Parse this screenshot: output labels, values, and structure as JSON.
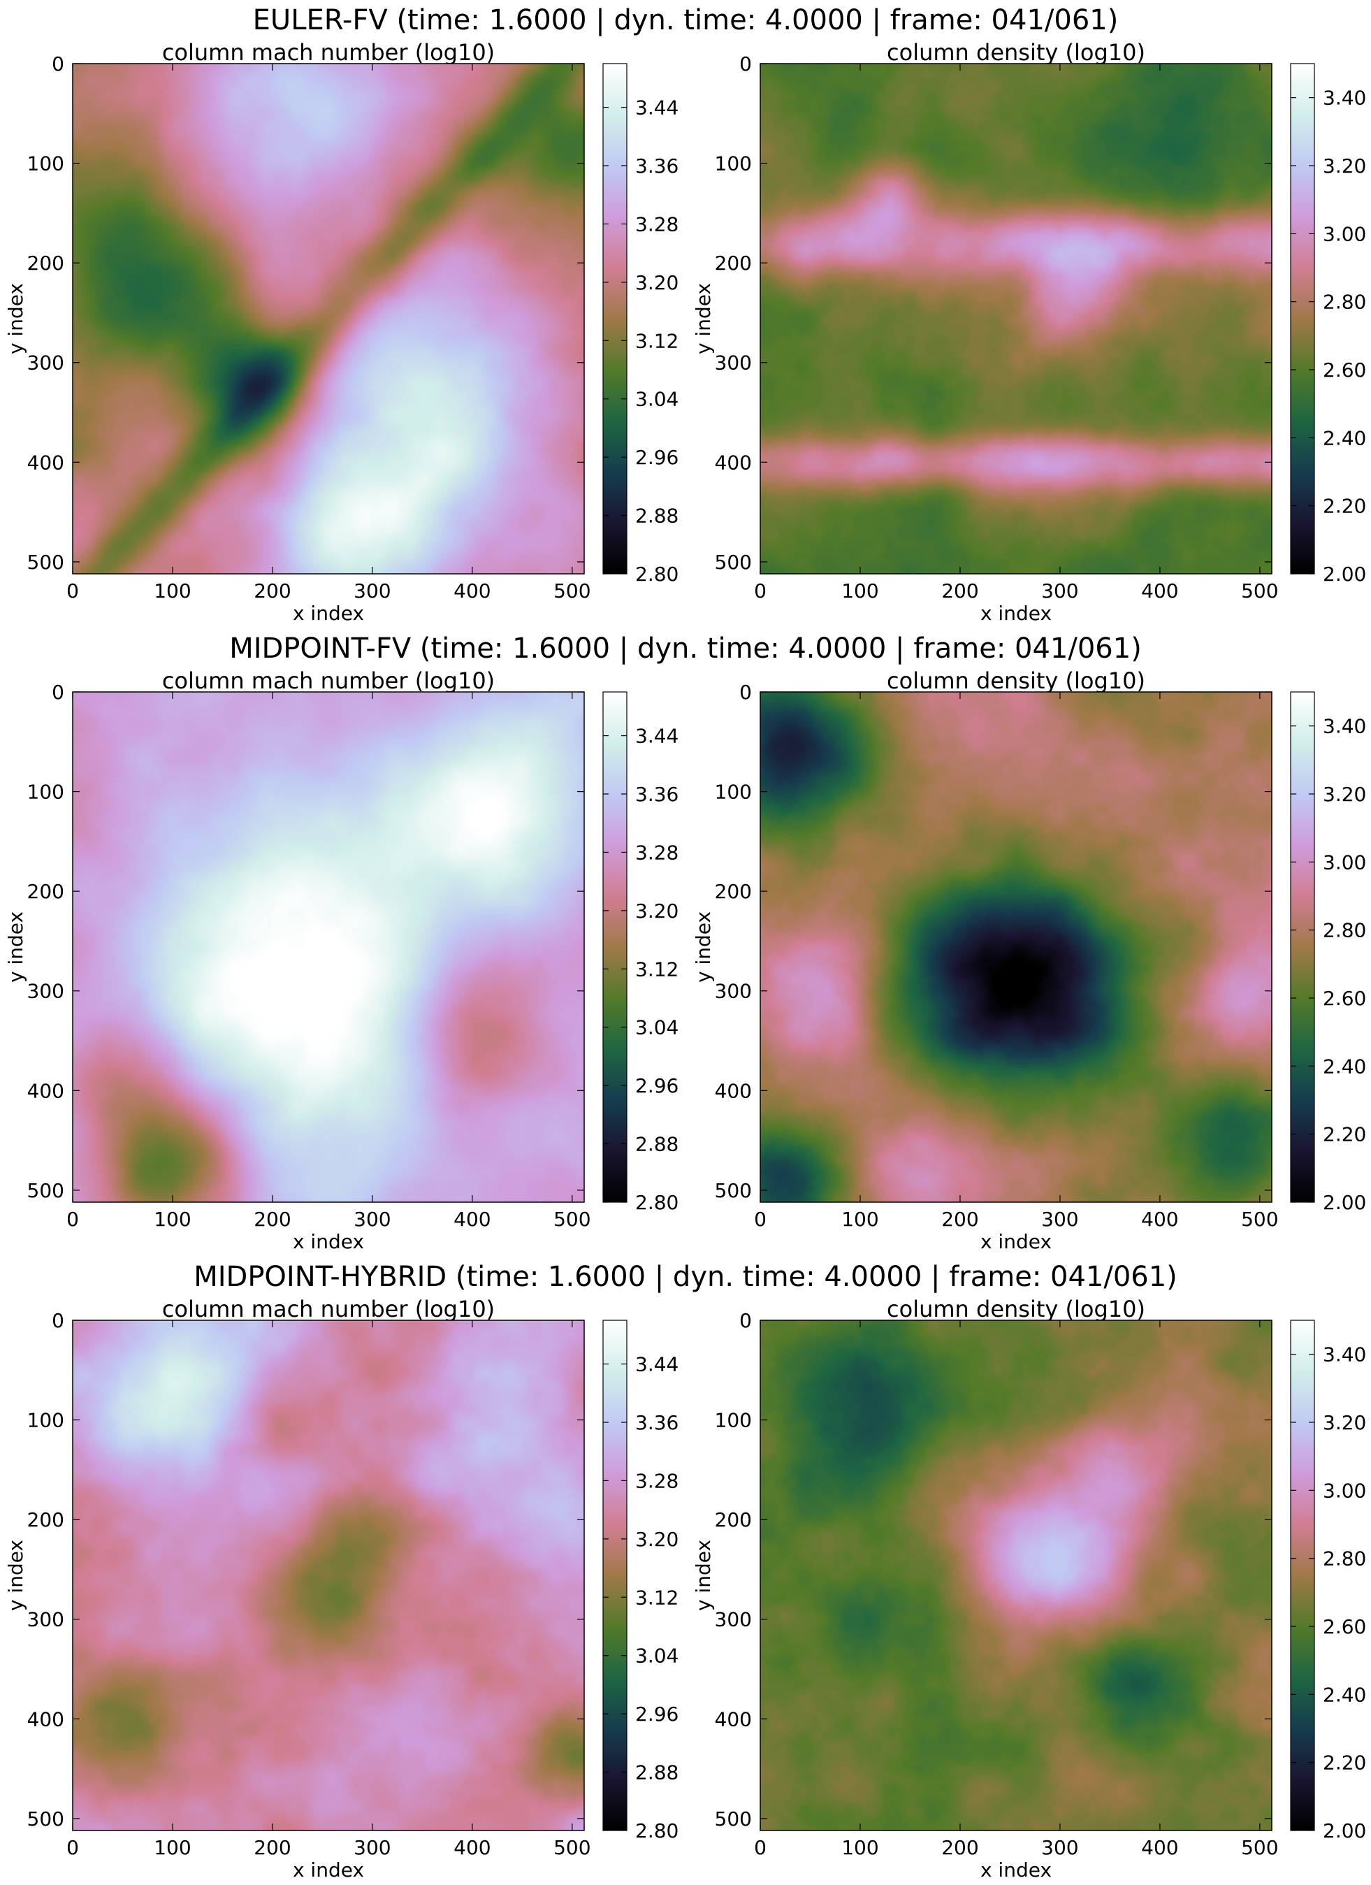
{
  "colormap": {
    "name": "cubehelix",
    "stops": [
      "#000000",
      "#1a1530",
      "#163d4e",
      "#1f6642",
      "#547a2a",
      "#a07949",
      "#d07e93",
      "#cf9cda",
      "#c1caf3",
      "#d2eeea",
      "#ffffff"
    ]
  },
  "rows": [
    {
      "title": "EULER-FV (time:  1.6000 | dyn. time:  4.0000 | frame: 041/061)",
      "panels": [
        {
          "title": "column mach number (log10)",
          "xlabel": "x index",
          "ylabel": "y index",
          "field": "mach-euler",
          "x_ticks": [
            "0",
            "100",
            "200",
            "300",
            "400",
            "500"
          ],
          "y_ticks": [
            "0",
            "100",
            "200",
            "300",
            "400",
            "500"
          ],
          "colorbar_ticks": [
            "2.80",
            "2.88",
            "2.96",
            "3.04",
            "3.12",
            "3.20",
            "3.28",
            "3.36",
            "3.44"
          ]
        },
        {
          "title": "column density (log10)",
          "xlabel": "x index",
          "ylabel": "y index",
          "field": "density-euler",
          "x_ticks": [
            "0",
            "100",
            "200",
            "300",
            "400",
            "500"
          ],
          "y_ticks": [
            "0",
            "100",
            "200",
            "300",
            "400",
            "500"
          ],
          "colorbar_ticks": [
            "2.00",
            "2.20",
            "2.40",
            "2.60",
            "2.80",
            "3.00",
            "3.20",
            "3.40"
          ]
        }
      ]
    },
    {
      "title": "MIDPOINT-FV (time:  1.6000 | dyn. time:  4.0000 | frame: 041/061)",
      "panels": [
        {
          "title": "column mach number (log10)",
          "xlabel": "x index",
          "ylabel": "y index",
          "field": "mach-midpoint-fv",
          "x_ticks": [
            "0",
            "100",
            "200",
            "300",
            "400",
            "500"
          ],
          "y_ticks": [
            "0",
            "100",
            "200",
            "300",
            "400",
            "500"
          ],
          "colorbar_ticks": [
            "2.80",
            "2.88",
            "2.96",
            "3.04",
            "3.12",
            "3.20",
            "3.28",
            "3.36",
            "3.44"
          ]
        },
        {
          "title": "column density (log10)",
          "xlabel": "x index",
          "ylabel": "y index",
          "field": "density-midpoint-fv",
          "x_ticks": [
            "0",
            "100",
            "200",
            "300",
            "400",
            "500"
          ],
          "y_ticks": [
            "0",
            "100",
            "200",
            "300",
            "400",
            "500"
          ],
          "colorbar_ticks": [
            "2.00",
            "2.20",
            "2.40",
            "2.60",
            "2.80",
            "3.00",
            "3.20",
            "3.40"
          ]
        }
      ]
    },
    {
      "title": "MIDPOINT-HYBRID (time:  1.6000 | dyn. time:  4.0000 | frame: 041/061)",
      "panels": [
        {
          "title": "column mach number (log10)",
          "xlabel": "x index",
          "ylabel": "y index",
          "field": "mach-midpoint-hybrid",
          "x_ticks": [
            "0",
            "100",
            "200",
            "300",
            "400",
            "500"
          ],
          "y_ticks": [
            "0",
            "100",
            "200",
            "300",
            "400",
            "500"
          ],
          "colorbar_ticks": [
            "2.80",
            "2.88",
            "2.96",
            "3.04",
            "3.12",
            "3.20",
            "3.28",
            "3.36",
            "3.44"
          ]
        },
        {
          "title": "column density (log10)",
          "xlabel": "x index",
          "ylabel": "y index",
          "field": "density-midpoint-hybrid",
          "x_ticks": [
            "0",
            "100",
            "200",
            "300",
            "400",
            "500"
          ],
          "y_ticks": [
            "0",
            "100",
            "200",
            "300",
            "400",
            "500"
          ],
          "colorbar_ticks": [
            "2.00",
            "2.20",
            "2.40",
            "2.60",
            "2.80",
            "3.00",
            "3.20",
            "3.40"
          ]
        }
      ]
    }
  ],
  "chart_data": [
    {
      "type": "heatmap",
      "title": "column mach number (log10)",
      "xlabel": "x index",
      "ylabel": "y index",
      "xlim": [
        0,
        512
      ],
      "ylim": [
        512,
        0
      ],
      "colorbar_range": [
        2.8,
        3.5
      ],
      "colorbar_ticks": [
        2.8,
        2.88,
        2.96,
        3.04,
        3.12,
        3.2,
        3.28,
        3.36,
        3.44
      ],
      "colormap": "cubehelix",
      "simulation": "EULER-FV"
    },
    {
      "type": "heatmap",
      "title": "column density (log10)",
      "xlabel": "x index",
      "ylabel": "y index",
      "xlim": [
        0,
        512
      ],
      "ylim": [
        512,
        0
      ],
      "colorbar_range": [
        2.0,
        3.5
      ],
      "colorbar_ticks": [
        2.0,
        2.2,
        2.4,
        2.6,
        2.8,
        3.0,
        3.2,
        3.4
      ],
      "colormap": "cubehelix",
      "simulation": "EULER-FV"
    },
    {
      "type": "heatmap",
      "title": "column mach number (log10)",
      "xlabel": "x index",
      "ylabel": "y index",
      "xlim": [
        0,
        512
      ],
      "ylim": [
        512,
        0
      ],
      "colorbar_range": [
        2.8,
        3.5
      ],
      "colorbar_ticks": [
        2.8,
        2.88,
        2.96,
        3.04,
        3.12,
        3.2,
        3.28,
        3.36,
        3.44
      ],
      "colormap": "cubehelix",
      "simulation": "MIDPOINT-FV"
    },
    {
      "type": "heatmap",
      "title": "column density (log10)",
      "xlabel": "x index",
      "ylabel": "y index",
      "xlim": [
        0,
        512
      ],
      "ylim": [
        512,
        0
      ],
      "colorbar_range": [
        2.0,
        3.5
      ],
      "colorbar_ticks": [
        2.0,
        2.2,
        2.4,
        2.6,
        2.8,
        3.0,
        3.2,
        3.4
      ],
      "colormap": "cubehelix",
      "simulation": "MIDPOINT-FV"
    },
    {
      "type": "heatmap",
      "title": "column mach number (log10)",
      "xlabel": "x index",
      "ylabel": "y index",
      "xlim": [
        0,
        512
      ],
      "ylim": [
        512,
        0
      ],
      "colorbar_range": [
        2.8,
        3.5
      ],
      "colorbar_ticks": [
        2.8,
        2.88,
        2.96,
        3.04,
        3.12,
        3.2,
        3.28,
        3.36,
        3.44
      ],
      "colormap": "cubehelix",
      "simulation": "MIDPOINT-HYBRID"
    },
    {
      "type": "heatmap",
      "title": "column density (log10)",
      "xlabel": "x index",
      "ylabel": "y index",
      "xlim": [
        0,
        512
      ],
      "ylim": [
        512,
        0
      ],
      "colorbar_range": [
        2.0,
        3.5
      ],
      "colorbar_ticks": [
        2.0,
        2.2,
        2.4,
        2.6,
        2.8,
        3.0,
        3.2,
        3.4
      ],
      "colormap": "cubehelix",
      "simulation": "MIDPOINT-HYBRID"
    }
  ]
}
